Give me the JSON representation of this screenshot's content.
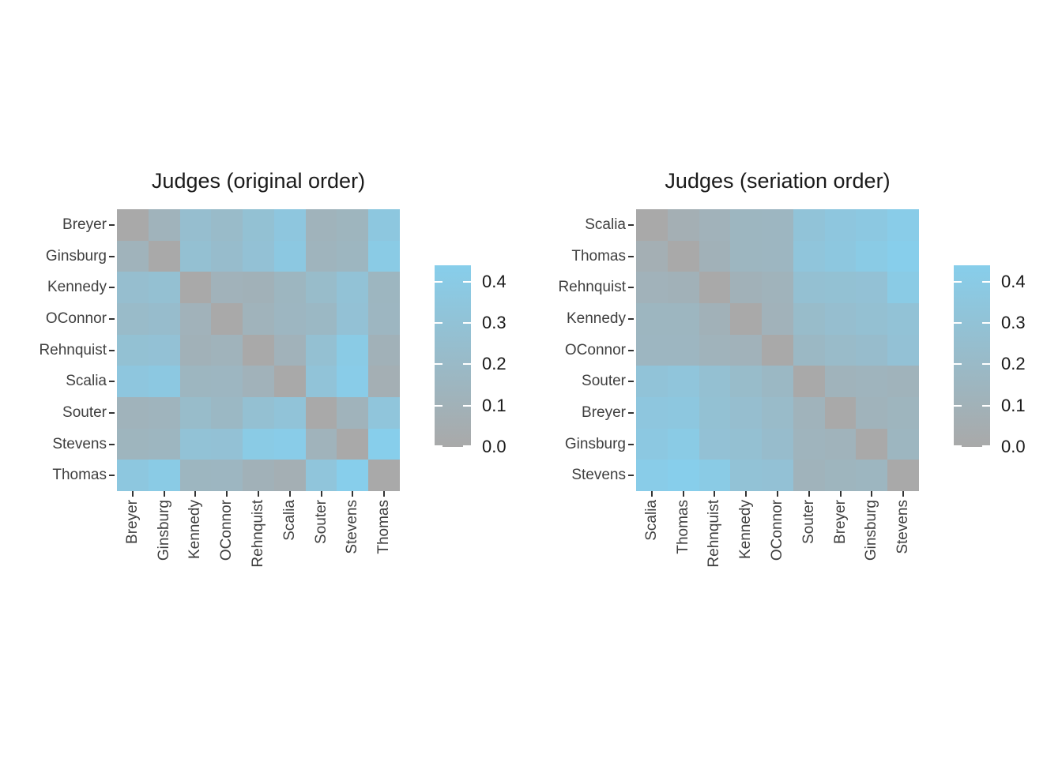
{
  "page": {
    "background": "#ffffff"
  },
  "chart_data": {
    "type": "heatmap",
    "description_visible_text_only": "Two heatmaps of the same 9x9 symmetric judge dissimilarity matrix shown in two row/column orders",
    "labels": [
      "Breyer",
      "Ginsburg",
      "Kennedy",
      "OConnor",
      "Rehnquist",
      "Scalia",
      "Souter",
      "Stevens",
      "Thomas"
    ],
    "matrix": [
      [
        0.0,
        0.12,
        0.25,
        0.21,
        0.28,
        0.35,
        0.12,
        0.14,
        0.36
      ],
      [
        0.12,
        0.0,
        0.27,
        0.23,
        0.29,
        0.37,
        0.13,
        0.15,
        0.4
      ],
      [
        0.25,
        0.27,
        0.0,
        0.11,
        0.1,
        0.15,
        0.22,
        0.3,
        0.15
      ],
      [
        0.21,
        0.23,
        0.11,
        0.0,
        0.12,
        0.16,
        0.18,
        0.29,
        0.16
      ],
      [
        0.28,
        0.29,
        0.1,
        0.12,
        0.0,
        0.11,
        0.27,
        0.4,
        0.1
      ],
      [
        0.35,
        0.37,
        0.15,
        0.16,
        0.11,
        0.0,
        0.31,
        0.42,
        0.07
      ],
      [
        0.12,
        0.13,
        0.22,
        0.18,
        0.27,
        0.31,
        0.0,
        0.12,
        0.33
      ],
      [
        0.14,
        0.15,
        0.3,
        0.29,
        0.4,
        0.42,
        0.12,
        0.0,
        0.44
      ],
      [
        0.36,
        0.4,
        0.15,
        0.16,
        0.1,
        0.07,
        0.33,
        0.44,
        0.0
      ]
    ],
    "views": [
      {
        "title": "Judges (original order)",
        "order": [
          "Breyer",
          "Ginsburg",
          "Kennedy",
          "OConnor",
          "Rehnquist",
          "Scalia",
          "Souter",
          "Stevens",
          "Thomas"
        ]
      },
      {
        "title": "Judges (seriation order)",
        "order": [
          "Scalia",
          "Thomas",
          "Rehnquist",
          "Kennedy",
          "OConnor",
          "Souter",
          "Breyer",
          "Ginsburg",
          "Stevens"
        ]
      }
    ],
    "scale": {
      "min": 0,
      "max": 0.44,
      "low_color": "#A9A9A9",
      "high_color": "#87CEEB",
      "legend_ticks": [
        "0.0",
        "0.1",
        "0.2",
        "0.3",
        "0.4"
      ]
    },
    "layout_hints": {
      "grid": "off",
      "legend_position": "right of each panel",
      "x_tick_rotation": 90
    }
  }
}
